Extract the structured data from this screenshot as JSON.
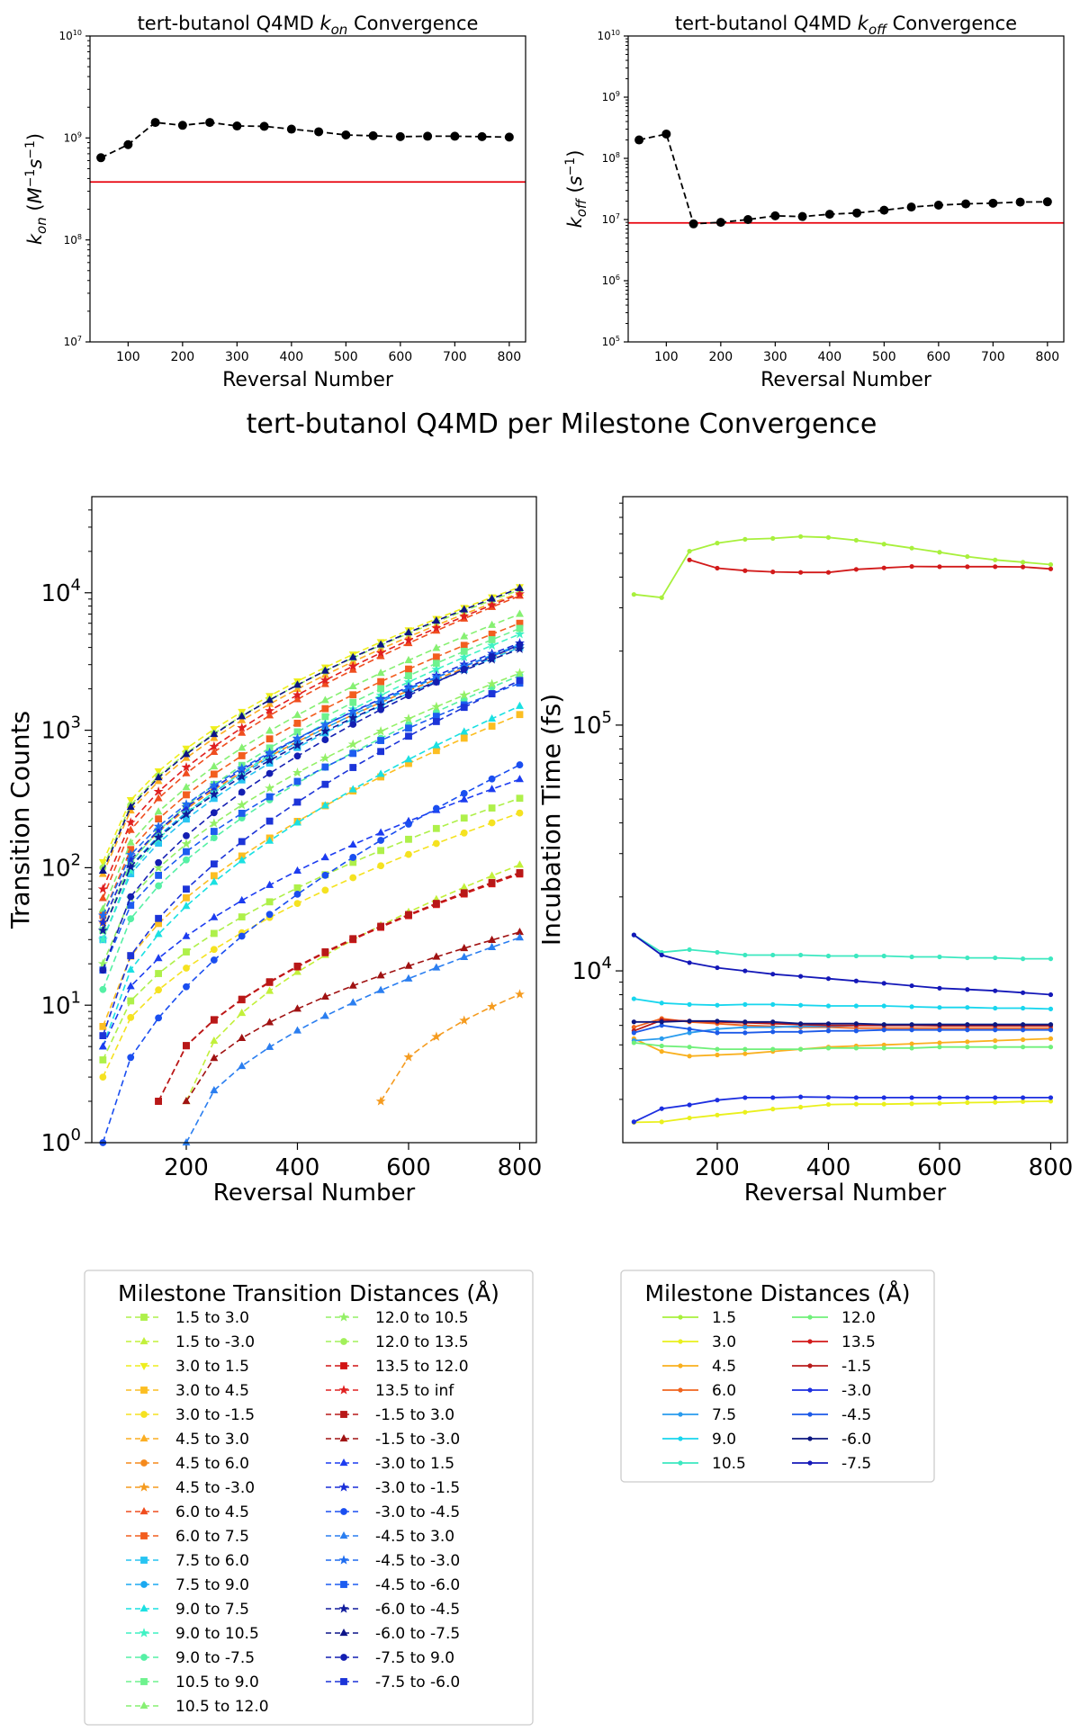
{
  "figure": {
    "suptitle": "tert-butanol Q4MD per Milestone Convergence"
  },
  "chart_data": [
    {
      "id": "kon",
      "type": "line",
      "title": "tert-butanol Q4MD k_on Convergence",
      "xlabel": "Reversal Number",
      "ylabel": "k_on (M^-1 s^-1)",
      "yscale": "log",
      "xlim": [
        30,
        830
      ],
      "ylim": [
        10000000.0,
        10000000000.0
      ],
      "xticks": [
        100,
        200,
        300,
        400,
        500,
        600,
        700,
        800
      ],
      "yticks": [
        "10^7",
        "10^8",
        "10^9",
        "10^10"
      ],
      "grid": false,
      "reference_line": {
        "y": 370000000.0,
        "color": "#e8000b"
      },
      "series": [
        {
          "style": "dashed-circle",
          "color": "#000000",
          "x": [
            50,
            100,
            150,
            200,
            250,
            300,
            350,
            400,
            450,
            500,
            550,
            600,
            650,
            700,
            750,
            800
          ],
          "y": [
            640000000.0,
            860000000.0,
            1420000000.0,
            1330000000.0,
            1420000000.0,
            1310000000.0,
            1300000000.0,
            1220000000.0,
            1150000000.0,
            1070000000.0,
            1050000000.0,
            1030000000.0,
            1040000000.0,
            1040000000.0,
            1030000000.0,
            1020000000.0
          ]
        }
      ]
    },
    {
      "id": "koff",
      "type": "line",
      "title": "tert-butanol Q4MD k_off Convergence",
      "xlabel": "Reversal Number",
      "ylabel": "k_off (s^-1)",
      "yscale": "log",
      "xlim": [
        30,
        830
      ],
      "ylim": [
        100000.0,
        10000000000.0
      ],
      "xticks": [
        100,
        200,
        300,
        400,
        500,
        600,
        700,
        800
      ],
      "yticks": [
        "10^5",
        "10^6",
        "10^7",
        "10^8",
        "10^9",
        "10^10"
      ],
      "grid": false,
      "reference_line": {
        "y": 8800000.0,
        "color": "#e8000b"
      },
      "series": [
        {
          "style": "dashed-circle",
          "color": "#000000",
          "x": [
            50,
            100,
            150,
            200,
            250,
            300,
            350,
            400,
            450,
            500,
            550,
            600,
            650,
            700,
            750,
            800
          ],
          "y": [
            200000000.0,
            250000000.0,
            8500000.0,
            9000000.0,
            10000000.0,
            11500000.0,
            11200000.0,
            12200000.0,
            12800000.0,
            14200000.0,
            16000000.0,
            17200000.0,
            18000000.0,
            18500000.0,
            19300000.0,
            19500000.0
          ]
        }
      ]
    },
    {
      "id": "counts",
      "type": "line",
      "xlabel": "Reversal Number",
      "ylabel": "Transition Counts",
      "yscale": "log",
      "xlim": [
        30,
        830
      ],
      "ylim": [
        1,
        50000
      ],
      "xticks": [
        200,
        400,
        600,
        800
      ],
      "yticks": [
        "10^0",
        "10^1",
        "10^2",
        "10^3",
        "10^4"
      ],
      "grid": false,
      "legend": {
        "title": "Milestone Transition Distances (Å)",
        "placement": "bottom-left",
        "columns": 2
      },
      "series": [
        {
          "name": "1.5 to 3.0",
          "color": "#aef04a",
          "marker": "s",
          "end": 320,
          "start": 4,
          "start_x": 50
        },
        {
          "name": "1.5 to -3.0",
          "color": "#c2f03a",
          "marker": "^",
          "end": 105,
          "start": 2,
          "start_x": 200
        },
        {
          "name": "3.0 to 1.5",
          "color": "#eeee1c",
          "marker": "v",
          "end": 11000,
          "start": 110,
          "start_x": 50
        },
        {
          "name": "3.0 to 4.5",
          "color": "#fcbe22",
          "marker": "s",
          "end": 1300,
          "start": 7,
          "start_x": 50
        },
        {
          "name": "3.0 to -1.5",
          "color": "#f5e220",
          "marker": "o",
          "end": 250,
          "start": 3,
          "start_x": 50
        },
        {
          "name": "4.5 to 3.0",
          "color": "#fbae22",
          "marker": "^",
          "end": 10000,
          "start": 90,
          "start_x": 50
        },
        {
          "name": "4.5 to 6.0",
          "color": "#f58a1c",
          "marker": "o",
          "end": 4000,
          "start": 40,
          "start_x": 50
        },
        {
          "name": "4.5 to -3.0",
          "color": "#f59b1f",
          "marker": "*",
          "end": 12,
          "start": 2,
          "start_x": 550
        },
        {
          "name": "6.0 to 4.5",
          "color": "#ef4d1e",
          "marker": "^",
          "end": 9500,
          "start": 60,
          "start_x": 50
        },
        {
          "name": "6.0 to 7.5",
          "color": "#f25e1e",
          "marker": "s",
          "end": 6000,
          "start": 45,
          "start_x": 50
        },
        {
          "name": "7.5 to 6.0",
          "color": "#27c4f2",
          "marker": "s",
          "end": 4000,
          "start": 30,
          "start_x": 50
        },
        {
          "name": "7.5 to 9.0",
          "color": "#1aa8f0",
          "marker": "o",
          "end": 4200,
          "start": 35,
          "start_x": 50
        },
        {
          "name": "9.0 to 7.5",
          "color": "#1ae0e2",
          "marker": "^",
          "end": 1500,
          "start": 5,
          "start_x": 50
        },
        {
          "name": "9.0 to 10.5",
          "color": "#3ff2c4",
          "marker": "*",
          "end": 5000,
          "start": 30,
          "start_x": 50
        },
        {
          "name": "9.0 to -7.5",
          "color": "#55f0a5",
          "marker": "o",
          "end": 2500,
          "start": 13,
          "start_x": 50
        },
        {
          "name": "10.5 to 9.0",
          "color": "#6ef28e",
          "marker": "s",
          "end": 5500,
          "start": 35,
          "start_x": 50
        },
        {
          "name": "10.5 to 12.0",
          "color": "#86f072",
          "marker": "^",
          "end": 7000,
          "start": 50,
          "start_x": 50
        },
        {
          "name": "12.0 to 10.5",
          "color": "#93f066",
          "marker": "*",
          "end": 2600,
          "start": 20,
          "start_x": 50
        },
        {
          "name": "12.0 to 13.5",
          "color": "#a2f05a",
          "marker": "o",
          "end": 10500,
          "start": 100,
          "start_x": 50
        },
        {
          "name": "13.5 to 12.0",
          "color": "#d11414",
          "marker": "s",
          "end": 90,
          "start": 2,
          "start_x": 150
        },
        {
          "name": "13.5 to inf",
          "color": "#e02020",
          "marker": "*",
          "end": 9800,
          "start": 70,
          "start_x": 50
        },
        {
          "name": "-1.5 to 3.0",
          "color": "#b81818",
          "marker": "s",
          "end": 92,
          "start": 2,
          "start_x": 150
        },
        {
          "name": "-1.5 to -3.0",
          "color": "#a01212",
          "marker": "^",
          "end": 34,
          "start": 2,
          "start_x": 200
        },
        {
          "name": "-3.0 to 1.5",
          "color": "#1c3cf0",
          "marker": "^",
          "end": 440,
          "start": 5,
          "start_x": 50
        },
        {
          "name": "-3.0 to -1.5",
          "color": "#1a2fd8",
          "marker": "*",
          "end": 4300,
          "start": 40,
          "start_x": 50
        },
        {
          "name": "-3.0 to -4.5",
          "color": "#1a4ef0",
          "marker": "o",
          "end": 560,
          "start": 1,
          "start_x": 50
        },
        {
          "name": "-4.5 to 3.0",
          "color": "#2a7ef0",
          "marker": "^",
          "end": 31,
          "start": 1,
          "start_x": 200
        },
        {
          "name": "-4.5 to -3.0",
          "color": "#1e6cf0",
          "marker": "*",
          "end": 4100,
          "start": 45,
          "start_x": 50
        },
        {
          "name": "-4.5 to -6.0",
          "color": "#1c5cf0",
          "marker": "s",
          "end": 2200,
          "start": 18,
          "start_x": 50
        },
        {
          "name": "-6.0 to -4.5",
          "color": "#101c9c",
          "marker": "*",
          "end": 3900,
          "start": 35,
          "start_x": 50
        },
        {
          "name": "-6.0 to -7.5",
          "color": "#0c1488",
          "marker": "^",
          "end": 10800,
          "start": 95,
          "start_x": 50
        },
        {
          "name": "-7.5 to 9.0",
          "color": "#141fb2",
          "marker": "o",
          "end": 4200,
          "start": 18,
          "start_x": 50
        },
        {
          "name": "-7.5 to -6.0",
          "color": "#1c34d8",
          "marker": "s",
          "end": 2300,
          "start": 6,
          "start_x": 50
        }
      ]
    },
    {
      "id": "incubation",
      "type": "line",
      "xlabel": "Reversal Number",
      "ylabel": "Incubation Time (fs)",
      "yscale": "log",
      "xlim": [
        30,
        830
      ],
      "ylim": [
        2000,
        850000
      ],
      "xticks": [
        200,
        400,
        600,
        800
      ],
      "yticks": [
        "10^4",
        "10^5"
      ],
      "grid": false,
      "legend": {
        "title": "Milestone Distances (Å)",
        "placement": "bottom-right",
        "columns": 2
      },
      "x": [
        50,
        100,
        150,
        200,
        250,
        300,
        350,
        400,
        450,
        500,
        550,
        600,
        650,
        700,
        750,
        800
      ],
      "series": [
        {
          "name": "1.5",
          "color": "#a8f03c",
          "y": [
            340000,
            330000,
            510000,
            550000,
            570000,
            575000,
            585000,
            580000,
            565000,
            545000,
            525000,
            505000,
            485000,
            470000,
            460000,
            450000
          ]
        },
        {
          "name": "3.0",
          "color": "#eaf01c",
          "y": [
            2420,
            2430,
            2520,
            2590,
            2660,
            2740,
            2790,
            2860,
            2870,
            2870,
            2880,
            2890,
            2910,
            2920,
            2940,
            2950
          ]
        },
        {
          "name": "4.5",
          "color": "#f9b01e",
          "y": [
            5300,
            4700,
            4500,
            4550,
            4600,
            4700,
            4800,
            4900,
            4950,
            5000,
            5050,
            5100,
            5150,
            5200,
            5250,
            5300
          ]
        },
        {
          "name": "6.0",
          "color": "#f0641e",
          "y": [
            5900,
            6400,
            6200,
            6100,
            6000,
            5950,
            5900,
            5900,
            5850,
            5850,
            5850,
            5850,
            5850,
            5850,
            5850,
            5850
          ]
        },
        {
          "name": "7.5",
          "color": "#2a9cee",
          "y": [
            5200,
            5300,
            5600,
            5800,
            5900,
            5900,
            5950,
            5950,
            6000,
            6050,
            6050,
            6050,
            6050,
            6050,
            6050,
            6050
          ]
        },
        {
          "name": "9.0",
          "color": "#18d6ee",
          "y": [
            7700,
            7400,
            7300,
            7250,
            7300,
            7300,
            7250,
            7200,
            7200,
            7200,
            7150,
            7100,
            7100,
            7050,
            7050,
            7000
          ]
        },
        {
          "name": "10.5",
          "color": "#3ce8c0",
          "y": [
            14000,
            11900,
            12200,
            11900,
            11600,
            11600,
            11600,
            11500,
            11500,
            11500,
            11400,
            11400,
            11300,
            11300,
            11200,
            11200
          ]
        },
        {
          "name": "12.0",
          "color": "#70f07a",
          "y": [
            5100,
            4950,
            4900,
            4800,
            4800,
            4800,
            4800,
            4850,
            4850,
            4850,
            4850,
            4900,
            4900,
            4900,
            4900,
            4900
          ]
        },
        {
          "name": "13.5",
          "color": "#d21a1a",
          "y": [
            null,
            null,
            470000,
            435000,
            425000,
            420000,
            418000,
            418000,
            430000,
            436000,
            442000,
            441000,
            441000,
            441000,
            440000,
            432000
          ]
        },
        {
          "name": "-1.5",
          "color": "#b81c1c",
          "y": [
            5700,
            6300,
            6250,
            6200,
            6150,
            6100,
            6050,
            6000,
            6000,
            6000,
            6000,
            5980,
            5980,
            5980,
            5980,
            5980
          ]
        },
        {
          "name": "-3.0",
          "color": "#1c2ee0",
          "y": [
            2430,
            2750,
            2850,
            2980,
            3050,
            3050,
            3070,
            3060,
            3050,
            3050,
            3050,
            3050,
            3050,
            3050,
            3050,
            3050
          ]
        },
        {
          "name": "-4.5",
          "color": "#1c5ae8",
          "y": [
            5600,
            6000,
            5800,
            5600,
            5600,
            5650,
            5650,
            5700,
            5700,
            5750,
            5750,
            5750,
            5750,
            5750,
            5750,
            5750
          ]
        },
        {
          "name": "-6.0",
          "color": "#0c1680",
          "y": [
            6200,
            6200,
            6250,
            6250,
            6200,
            6200,
            6100,
            6100,
            6100,
            6050,
            6050,
            6050,
            6050,
            6050,
            6050,
            6050
          ]
        },
        {
          "name": "-7.5",
          "color": "#1418b8",
          "y": [
            14000,
            11600,
            10800,
            10300,
            10000,
            9700,
            9500,
            9300,
            9100,
            8900,
            8700,
            8500,
            8400,
            8300,
            8150,
            8000
          ]
        }
      ]
    }
  ]
}
